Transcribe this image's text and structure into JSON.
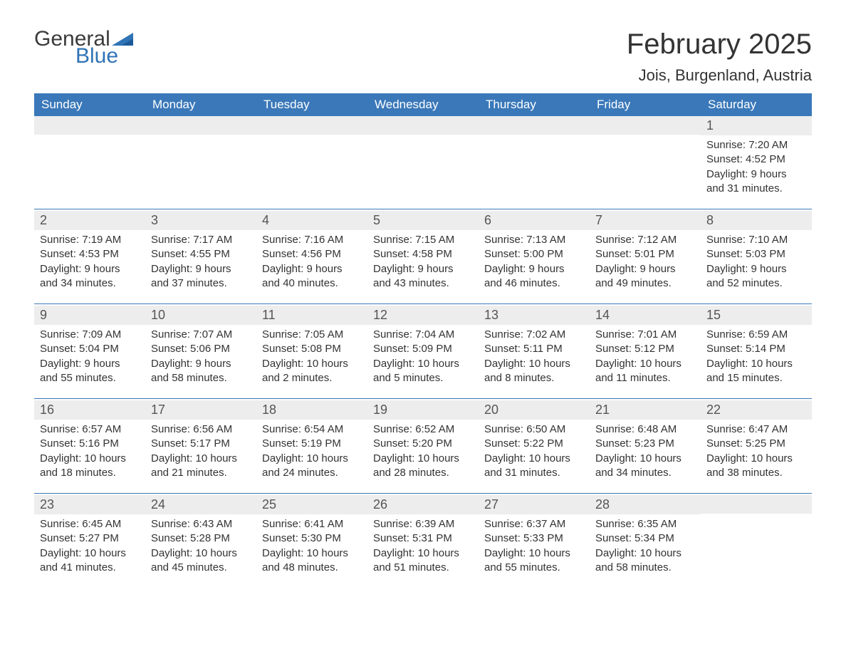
{
  "logo": {
    "word1": "General",
    "word2": "Blue",
    "text_color": "#3b3b3b",
    "accent_color": "#2f74b5"
  },
  "title": "February 2025",
  "location": "Jois, Burgenland, Austria",
  "calendar": {
    "header_bg": "#3a78b9",
    "header_fg": "#ffffff",
    "daynum_bg": "#ededed",
    "rule_color": "#3a78b9",
    "body_bg": "#ffffff",
    "text_color": "#333333",
    "font_family": "Arial",
    "title_fontsize": 40,
    "location_fontsize": 22,
    "header_fontsize": 17,
    "daynum_fontsize": 18,
    "body_fontsize": 15,
    "day_headers": [
      "Sunday",
      "Monday",
      "Tuesday",
      "Wednesday",
      "Thursday",
      "Friday",
      "Saturday"
    ],
    "start_weekday_index": 6,
    "num_weeks": 5,
    "days": [
      {
        "n": 1,
        "sunrise": "7:20 AM",
        "sunset": "4:52 PM",
        "daylight": "9 hours and 31 minutes."
      },
      {
        "n": 2,
        "sunrise": "7:19 AM",
        "sunset": "4:53 PM",
        "daylight": "9 hours and 34 minutes."
      },
      {
        "n": 3,
        "sunrise": "7:17 AM",
        "sunset": "4:55 PM",
        "daylight": "9 hours and 37 minutes."
      },
      {
        "n": 4,
        "sunrise": "7:16 AM",
        "sunset": "4:56 PM",
        "daylight": "9 hours and 40 minutes."
      },
      {
        "n": 5,
        "sunrise": "7:15 AM",
        "sunset": "4:58 PM",
        "daylight": "9 hours and 43 minutes."
      },
      {
        "n": 6,
        "sunrise": "7:13 AM",
        "sunset": "5:00 PM",
        "daylight": "9 hours and 46 minutes."
      },
      {
        "n": 7,
        "sunrise": "7:12 AM",
        "sunset": "5:01 PM",
        "daylight": "9 hours and 49 minutes."
      },
      {
        "n": 8,
        "sunrise": "7:10 AM",
        "sunset": "5:03 PM",
        "daylight": "9 hours and 52 minutes."
      },
      {
        "n": 9,
        "sunrise": "7:09 AM",
        "sunset": "5:04 PM",
        "daylight": "9 hours and 55 minutes."
      },
      {
        "n": 10,
        "sunrise": "7:07 AM",
        "sunset": "5:06 PM",
        "daylight": "9 hours and 58 minutes."
      },
      {
        "n": 11,
        "sunrise": "7:05 AM",
        "sunset": "5:08 PM",
        "daylight": "10 hours and 2 minutes."
      },
      {
        "n": 12,
        "sunrise": "7:04 AM",
        "sunset": "5:09 PM",
        "daylight": "10 hours and 5 minutes."
      },
      {
        "n": 13,
        "sunrise": "7:02 AM",
        "sunset": "5:11 PM",
        "daylight": "10 hours and 8 minutes."
      },
      {
        "n": 14,
        "sunrise": "7:01 AM",
        "sunset": "5:12 PM",
        "daylight": "10 hours and 11 minutes."
      },
      {
        "n": 15,
        "sunrise": "6:59 AM",
        "sunset": "5:14 PM",
        "daylight": "10 hours and 15 minutes."
      },
      {
        "n": 16,
        "sunrise": "6:57 AM",
        "sunset": "5:16 PM",
        "daylight": "10 hours and 18 minutes."
      },
      {
        "n": 17,
        "sunrise": "6:56 AM",
        "sunset": "5:17 PM",
        "daylight": "10 hours and 21 minutes."
      },
      {
        "n": 18,
        "sunrise": "6:54 AM",
        "sunset": "5:19 PM",
        "daylight": "10 hours and 24 minutes."
      },
      {
        "n": 19,
        "sunrise": "6:52 AM",
        "sunset": "5:20 PM",
        "daylight": "10 hours and 28 minutes."
      },
      {
        "n": 20,
        "sunrise": "6:50 AM",
        "sunset": "5:22 PM",
        "daylight": "10 hours and 31 minutes."
      },
      {
        "n": 21,
        "sunrise": "6:48 AM",
        "sunset": "5:23 PM",
        "daylight": "10 hours and 34 minutes."
      },
      {
        "n": 22,
        "sunrise": "6:47 AM",
        "sunset": "5:25 PM",
        "daylight": "10 hours and 38 minutes."
      },
      {
        "n": 23,
        "sunrise": "6:45 AM",
        "sunset": "5:27 PM",
        "daylight": "10 hours and 41 minutes."
      },
      {
        "n": 24,
        "sunrise": "6:43 AM",
        "sunset": "5:28 PM",
        "daylight": "10 hours and 45 minutes."
      },
      {
        "n": 25,
        "sunrise": "6:41 AM",
        "sunset": "5:30 PM",
        "daylight": "10 hours and 48 minutes."
      },
      {
        "n": 26,
        "sunrise": "6:39 AM",
        "sunset": "5:31 PM",
        "daylight": "10 hours and 51 minutes."
      },
      {
        "n": 27,
        "sunrise": "6:37 AM",
        "sunset": "5:33 PM",
        "daylight": "10 hours and 55 minutes."
      },
      {
        "n": 28,
        "sunrise": "6:35 AM",
        "sunset": "5:34 PM",
        "daylight": "10 hours and 58 minutes."
      }
    ],
    "labels": {
      "sunrise": "Sunrise",
      "sunset": "Sunset",
      "daylight": "Daylight"
    }
  }
}
